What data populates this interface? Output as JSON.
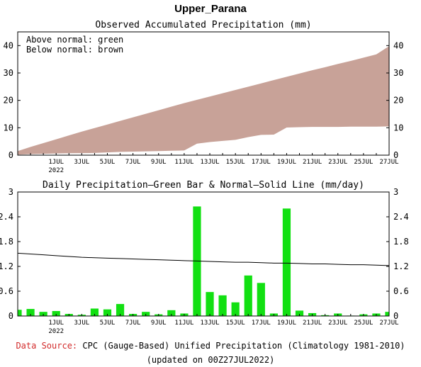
{
  "title": "Upper_Parana",
  "colors": {
    "above_normal": "#18b018",
    "below_normal": "#c8a298",
    "daily_bar": "#12e012",
    "normal_line": "#000000",
    "source_label": "#d22a2a"
  },
  "chart_data": [
    {
      "type": "area",
      "title": "Observed Accumulated Precipitation (mm)",
      "legend_lines": [
        "Above normal: green",
        "Below normal: brown"
      ],
      "legend_position": "top-left",
      "x_dates": [
        "28JUN",
        "29JUN",
        "30JUN",
        "1JUL",
        "2JUL",
        "3JUL",
        "4JUL",
        "5JUL",
        "6JUL",
        "7JUL",
        "8JUL",
        "9JUL",
        "10JUL",
        "11JUL",
        "12JUL",
        "13JUL",
        "14JUL",
        "15JUL",
        "16JUL",
        "17JUL",
        "18JUL",
        "19JUL",
        "20JUL",
        "21JUL",
        "22JUL",
        "23JUL",
        "24JUL",
        "25JUL",
        "26JUL",
        "27JUL"
      ],
      "x_ticks": [
        "1JUL",
        "3JUL",
        "5JUL",
        "7JUL",
        "9JUL",
        "11JUL",
        "13JUL",
        "15JUL",
        "17JUL",
        "19JUL",
        "21JUL",
        "23JUL",
        "25JUL",
        "27JUL"
      ],
      "x_sublabel": {
        "under": "1JUL",
        "text": "2022"
      },
      "ylim": [
        0,
        45
      ],
      "y_ticks": [
        0,
        10,
        20,
        30,
        40
      ],
      "series": [
        {
          "name": "Normal",
          "values": [
            1.5,
            3.0,
            4.4,
            5.8,
            7.2,
            8.6,
            9.9,
            11.2,
            12.5,
            13.8,
            15.1,
            16.4,
            17.7,
            19.0,
            20.2,
            21.4,
            22.6,
            23.8,
            25.0,
            26.2,
            27.4,
            28.6,
            29.8,
            31.0,
            32.1,
            33.3,
            34.4,
            35.6,
            36.8,
            39.8
          ]
        },
        {
          "name": "Observed",
          "values": [
            0.2,
            0.4,
            0.5,
            0.6,
            0.7,
            0.75,
            0.8,
            1.0,
            1.2,
            1.3,
            1.4,
            1.5,
            1.6,
            1.7,
            4.2,
            4.8,
            5.2,
            5.6,
            6.6,
            7.4,
            7.5,
            10.1,
            10.2,
            10.3,
            10.3,
            10.3,
            10.4,
            10.4,
            10.4,
            10.5
          ]
        }
      ]
    },
    {
      "type": "bar",
      "title": "Daily Precipitation—Green Bar & Normal—Solid Line (mm/day)",
      "x_dates": [
        "28JUN",
        "29JUN",
        "30JUN",
        "1JUL",
        "2JUL",
        "3JUL",
        "4JUL",
        "5JUL",
        "6JUL",
        "7JUL",
        "8JUL",
        "9JUL",
        "10JUL",
        "11JUL",
        "12JUL",
        "13JUL",
        "14JUL",
        "15JUL",
        "16JUL",
        "17JUL",
        "18JUL",
        "19JUL",
        "20JUL",
        "21JUL",
        "22JUL",
        "23JUL",
        "24JUL",
        "25JUL",
        "26JUL",
        "27JUL"
      ],
      "x_ticks": [
        "1JUL",
        "3JUL",
        "5JUL",
        "7JUL",
        "9JUL",
        "11JUL",
        "13JUL",
        "15JUL",
        "17JUL",
        "19JUL",
        "21JUL",
        "23JUL",
        "25JUL",
        "27JUL"
      ],
      "x_sublabel": {
        "under": "1JUL",
        "text": "2022"
      },
      "ylim": [
        0,
        3
      ],
      "y_ticks": [
        "0",
        "0.6",
        "1.2",
        "1.8",
        "2.4",
        "3"
      ],
      "series": [
        {
          "name": "Daily",
          "values": [
            0.15,
            0.17,
            0.1,
            0.12,
            0.05,
            0.03,
            0.18,
            0.16,
            0.29,
            0.05,
            0.1,
            0.04,
            0.14,
            0.06,
            2.65,
            0.58,
            0.5,
            0.33,
            0.98,
            0.8,
            0.06,
            2.6,
            0.13,
            0.07,
            0.02,
            0.06,
            0.01,
            0.04,
            0.06,
            0.1
          ]
        },
        {
          "name": "Normal",
          "values": [
            1.52,
            1.5,
            1.48,
            1.46,
            1.44,
            1.42,
            1.41,
            1.4,
            1.39,
            1.38,
            1.37,
            1.36,
            1.35,
            1.34,
            1.33,
            1.32,
            1.31,
            1.3,
            1.3,
            1.29,
            1.28,
            1.28,
            1.27,
            1.26,
            1.26,
            1.25,
            1.24,
            1.24,
            1.23,
            1.22
          ]
        }
      ]
    }
  ],
  "footer": {
    "source_label": "Data Source:",
    "source_text": " CPC (Gauge-Based) Unified Precipitation (Climatology 1981-2010)",
    "updated": "(updated on 00Z27JUL2022)"
  }
}
